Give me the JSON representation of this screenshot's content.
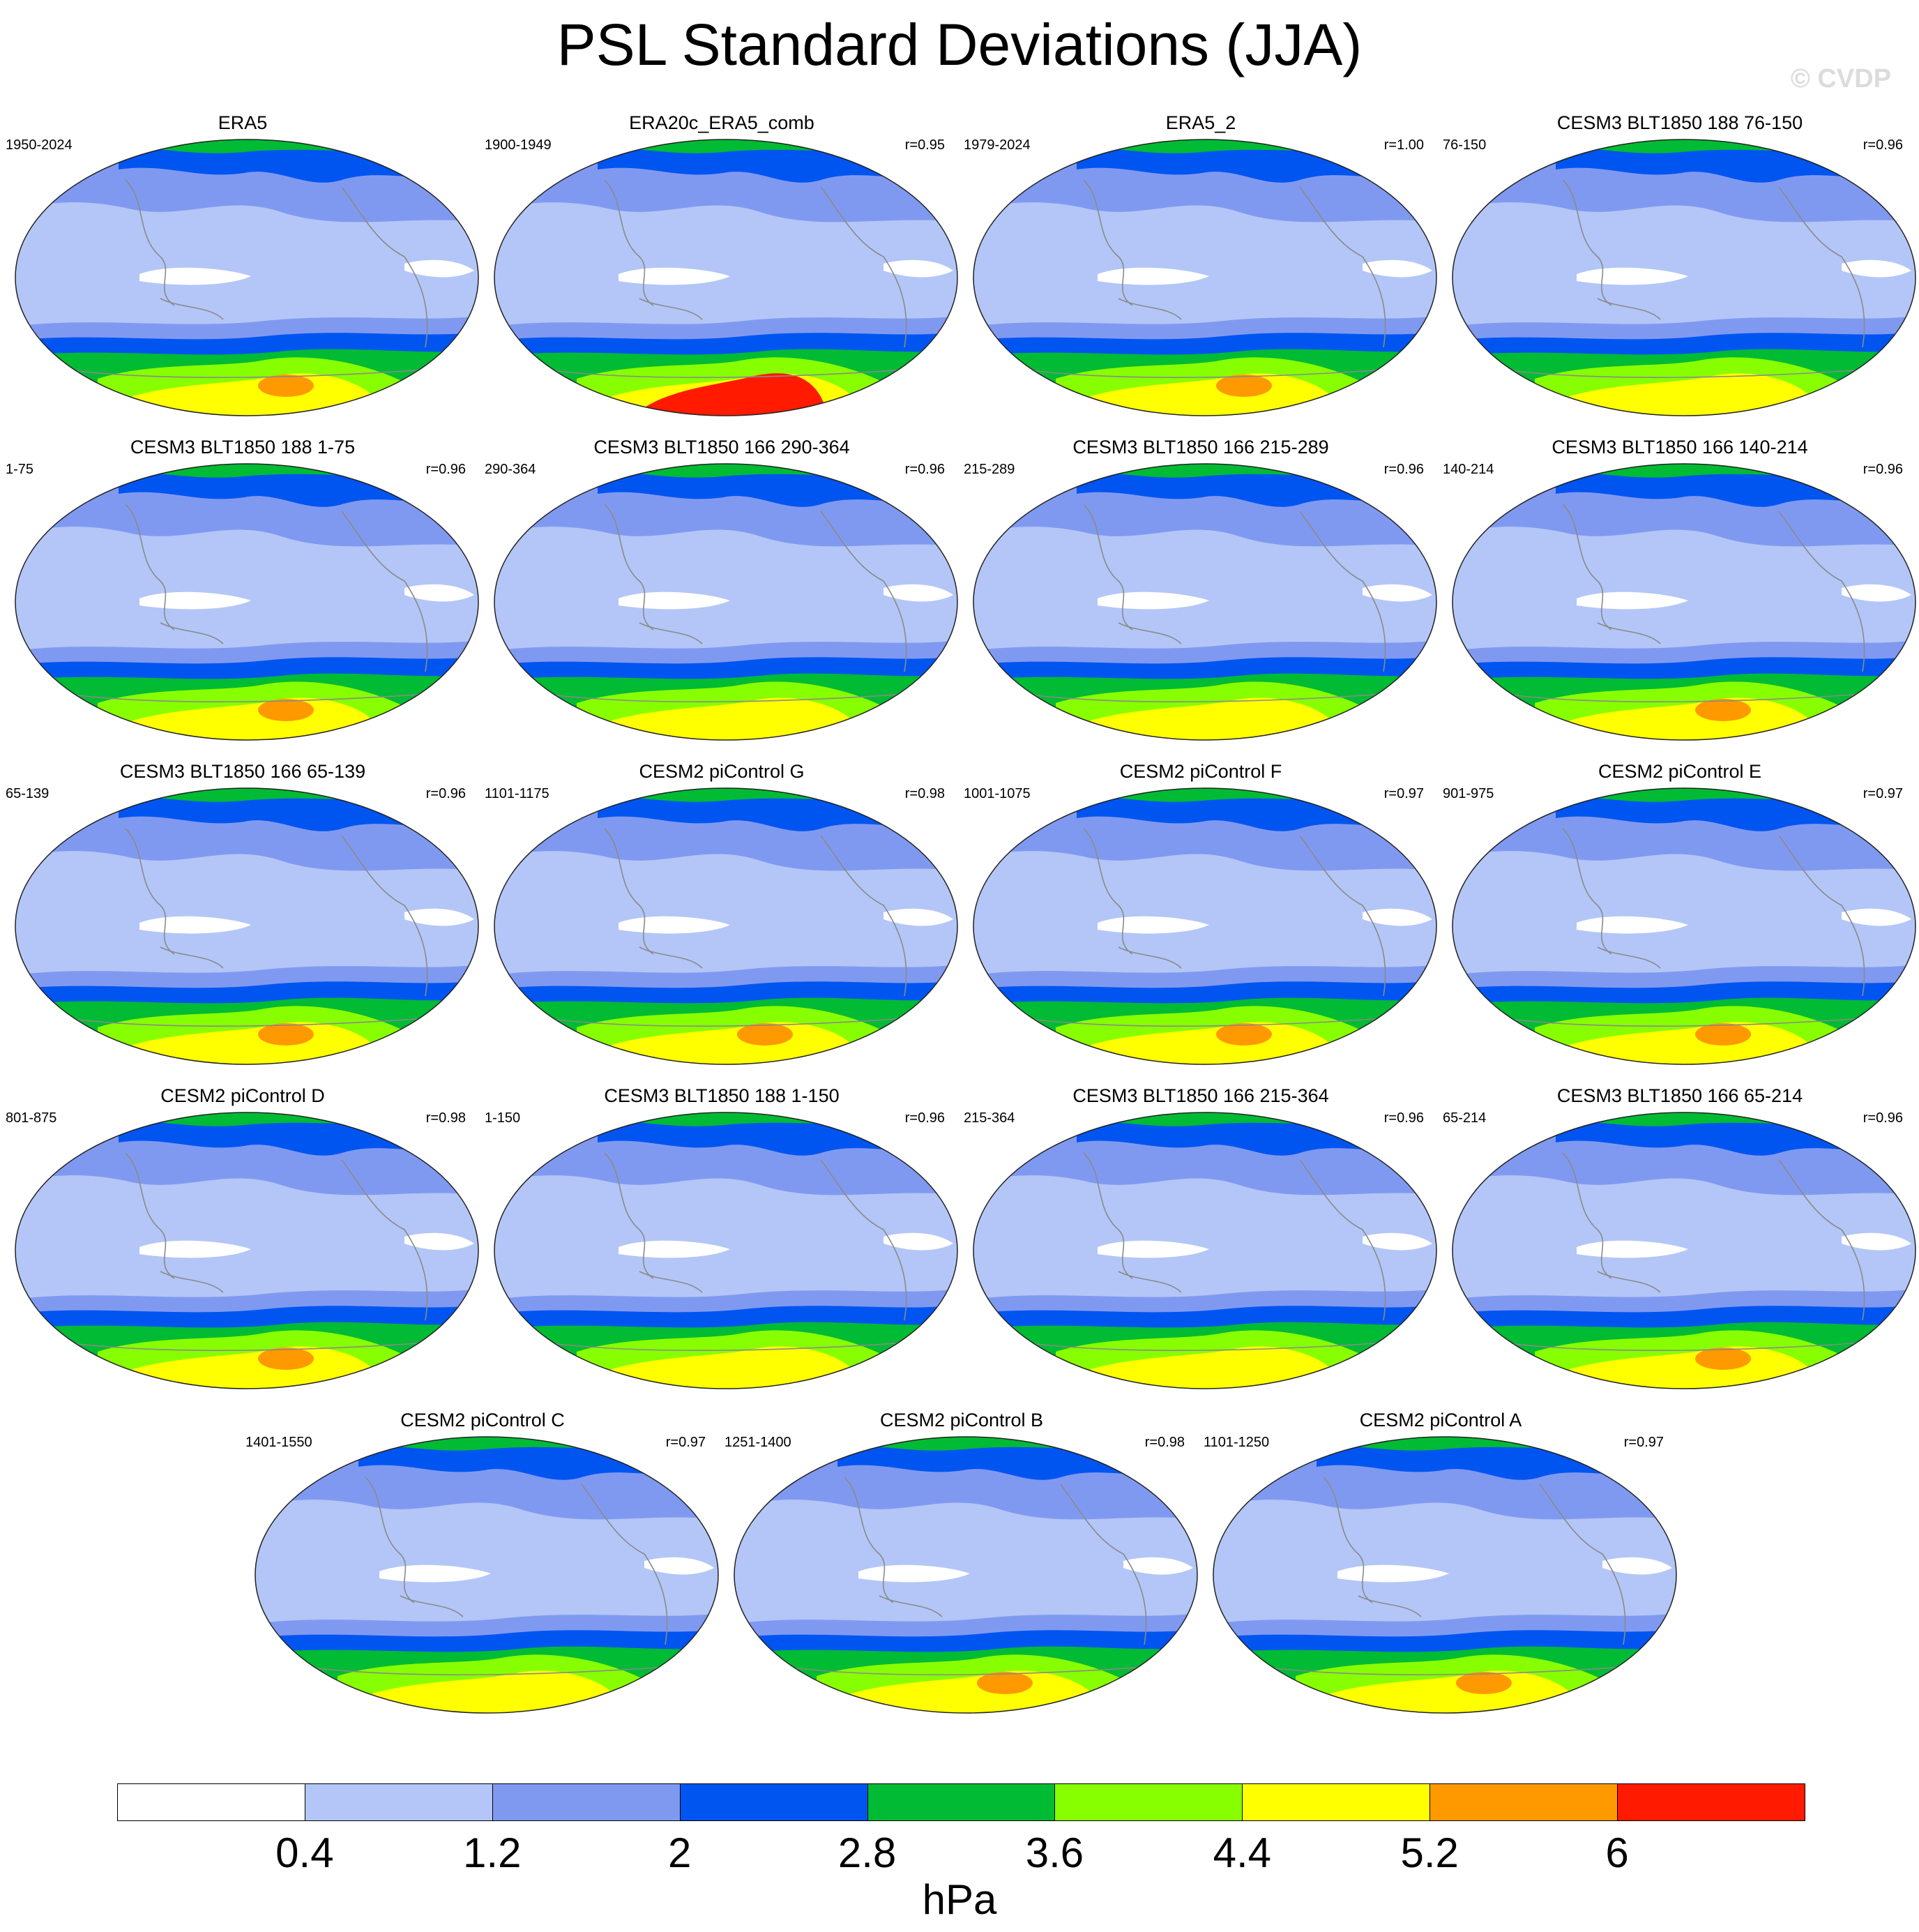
{
  "title": "PSL Standard Deviations (JJA)",
  "watermark": "© CVDP",
  "colorbar": {
    "levels": [
      "0.4",
      "1.2",
      "2",
      "2.8",
      "3.6",
      "4.4",
      "5.2",
      "6"
    ],
    "colors": [
      "#ffffff",
      "#b3c6f7",
      "#8099f0",
      "#0055f0",
      "#00bb33",
      "#88ff00",
      "#ffff00",
      "#ff9900",
      "#ff1a00"
    ],
    "units": "hPa"
  },
  "panels": [
    {
      "title": "ERA5",
      "years": "1950-2024",
      "r": "",
      "south": 5.3
    },
    {
      "title": "ERA20c_ERA5_comb",
      "years": "1900-1949",
      "r": "r=0.95",
      "south": 6.6
    },
    {
      "title": "ERA5_2",
      "years": "1979-2024",
      "r": "r=1.00",
      "south": 5.5
    },
    {
      "title": "CESM3 BLT1850 188 76-150",
      "years": "76-150",
      "r": "r=0.96",
      "south": 4.6
    },
    {
      "title": "CESM3 BLT1850 188 1-75",
      "years": "1-75",
      "r": "r=0.96",
      "south": 5.3
    },
    {
      "title": "CESM3 BLT1850 166 290-364",
      "years": "290-364",
      "r": "r=0.96",
      "south": 5.0
    },
    {
      "title": "CESM3 BLT1850 166 215-289",
      "years": "215-289",
      "r": "r=0.96",
      "south": 5.0
    },
    {
      "title": "CESM3 BLT1850 166 140-214",
      "years": "140-214",
      "r": "r=0.96",
      "south": 5.3
    },
    {
      "title": "CESM3 BLT1850 166 65-139",
      "years": "65-139",
      "r": "r=0.96",
      "south": 5.3
    },
    {
      "title": "CESM2 piControl G",
      "years": "1101-1175",
      "r": "r=0.98",
      "south": 5.3
    },
    {
      "title": "CESM2 piControl F",
      "years": "1001-1075",
      "r": "r=0.97",
      "south": 5.3
    },
    {
      "title": "CESM2 piControl E",
      "years": "901-975",
      "r": "r=0.97",
      "south": 5.3
    },
    {
      "title": "CESM2 piControl D",
      "years": "801-875",
      "r": "r=0.98",
      "south": 5.3
    },
    {
      "title": "CESM3 BLT1850 188 1-150",
      "years": "1-150",
      "r": "r=0.96",
      "south": 5.0
    },
    {
      "title": "CESM3 BLT1850 166 215-364",
      "years": "215-364",
      "r": "r=0.96",
      "south": 5.0
    },
    {
      "title": "CESM3 BLT1850 166 65-214",
      "years": "65-214",
      "r": "r=0.96",
      "south": 5.3
    },
    {
      "title": "CESM2 piControl C",
      "years": "1401-1550",
      "r": "r=0.97",
      "south": 5.0
    },
    {
      "title": "CESM2 piControl B",
      "years": "1251-1400",
      "r": "r=0.98",
      "south": 5.3
    },
    {
      "title": "CESM2 piControl A",
      "years": "1101-1250",
      "r": "r=0.97",
      "south": 5.3
    }
  ]
}
